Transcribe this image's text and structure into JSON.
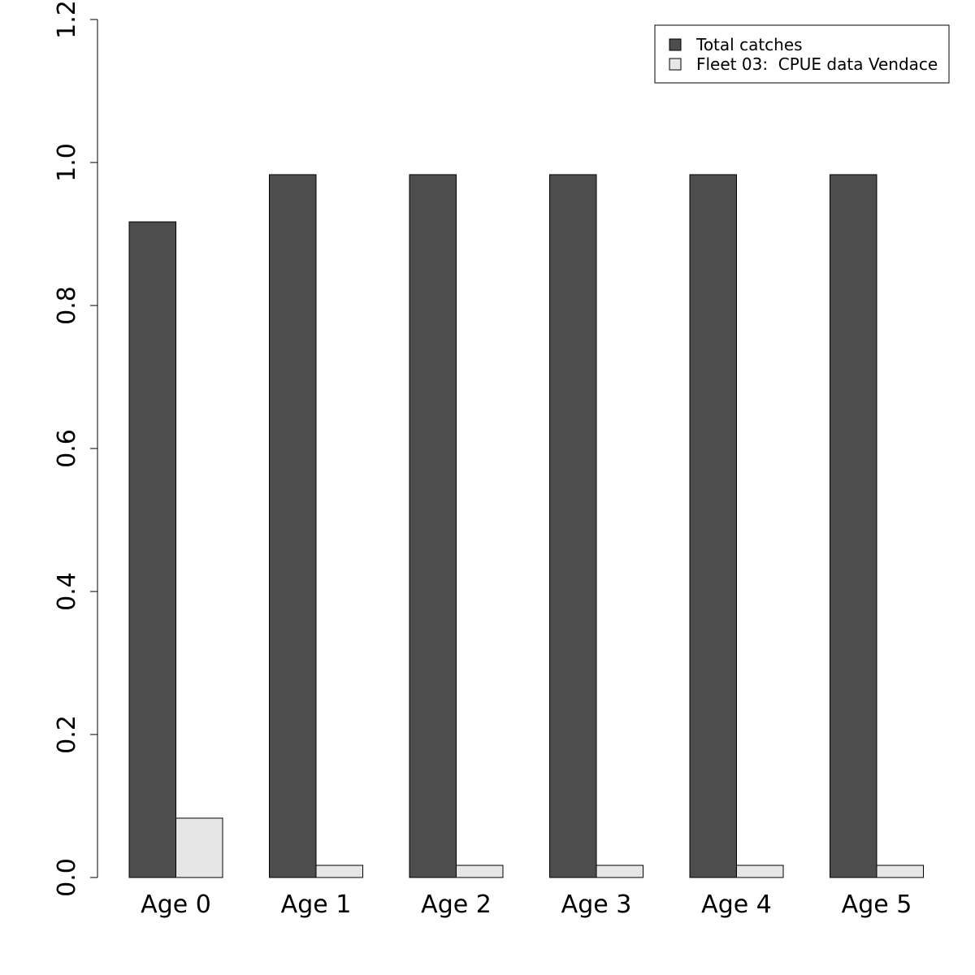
{
  "chart_data": {
    "type": "bar",
    "categories": [
      "Age 0",
      "Age 1",
      "Age 2",
      "Age 3",
      "Age 4",
      "Age 5"
    ],
    "series": [
      {
        "name": "Total catches",
        "color": "#4d4d4d",
        "values": [
          0.917,
          0.983,
          0.983,
          0.983,
          0.983,
          0.983
        ]
      },
      {
        "name": "Fleet 03:  CPUE data Vendace",
        "color": "#e6e6e6",
        "values": [
          0.083,
          0.017,
          0.017,
          0.017,
          0.017,
          0.017
        ]
      }
    ],
    "ylim": [
      0,
      1.2
    ],
    "yticks": [
      "0.0",
      "0.2",
      "0.4",
      "0.6",
      "0.8",
      "1.0",
      "1.2"
    ],
    "title": "",
    "xlabel": "",
    "ylabel": "",
    "legend": "top-right",
    "grid": false
  }
}
